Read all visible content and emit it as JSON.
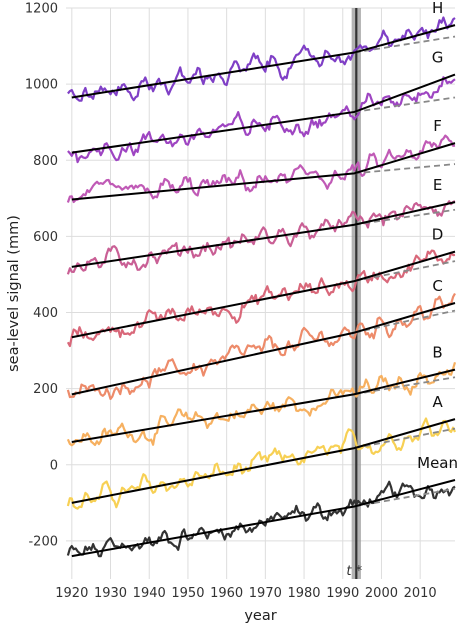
{
  "chart_data": {
    "type": "line",
    "xlabel": "year",
    "ylabel": "sea-level signal  (mm)",
    "xlim": [
      1918.5,
      2019
    ],
    "ylim": [
      -300,
      1200
    ],
    "x_ticks": [
      1920,
      1930,
      1940,
      1950,
      1960,
      1970,
      1980,
      1990,
      2000,
      2010
    ],
    "y_ticks": [
      -200,
      0,
      200,
      400,
      600,
      800,
      1000,
      1200
    ],
    "grid": true,
    "t_star": {
      "label": "t *",
      "x": 1993.5
    },
    "series": [
      {
        "name": "Mean",
        "color": "#333333",
        "trend_start": [
          1920,
          -240
        ],
        "trend_end": [
          2019,
          -40
        ],
        "accel_from": 1993,
        "dashed_end": -63
      },
      {
        "name": "A",
        "color": "#f7d054",
        "trend_start": [
          1920,
          -100
        ],
        "trend_end": [
          2019,
          120
        ],
        "accel_from": 1993,
        "dashed_end": 95
      },
      {
        "name": "B",
        "color": "#f6b060",
        "trend_start": [
          1920,
          60
        ],
        "trend_end": [
          2019,
          250
        ],
        "accel_from": 1993,
        "dashed_end": 230
      },
      {
        "name": "C",
        "color": "#ed8b6a",
        "trend_start": [
          1920,
          185
        ],
        "trend_end": [
          2019,
          425
        ],
        "accel_from": 1993,
        "dashed_end": 405
      },
      {
        "name": "D",
        "color": "#d9687a",
        "trend_start": [
          1920,
          335
        ],
        "trend_end": [
          2019,
          560
        ],
        "accel_from": 1993,
        "dashed_end": 535
      },
      {
        "name": "E",
        "color": "#c95f95",
        "trend_start": [
          1920,
          520
        ],
        "trend_end": [
          2019,
          690
        ],
        "accel_from": 1993,
        "dashed_end": 670
      },
      {
        "name": "F",
        "color": "#c05ab6",
        "trend_start": [
          1920,
          697
        ],
        "trend_end": [
          2019,
          845
        ],
        "accel_from": 1993,
        "dashed_end": 790
      },
      {
        "name": "G",
        "color": "#9e45c2",
        "trend_start": [
          1920,
          820
        ],
        "trend_end": [
          2019,
          1025
        ],
        "accel_from": 1993,
        "dashed_end": 965
      },
      {
        "name": "H",
        "color": "#7f3fc6",
        "trend_start": [
          1920,
          965
        ],
        "trend_end": [
          2019,
          1155
        ],
        "accel_from": 1993,
        "dashed_end": 1125
      }
    ]
  }
}
